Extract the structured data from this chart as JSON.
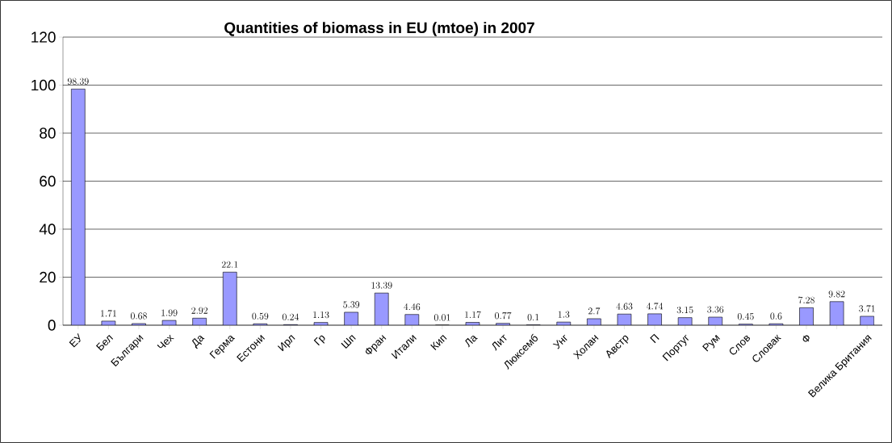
{
  "chart_data": {
    "type": "bar",
    "title": "Quantities of biomass in EU (mtoe) in 2007",
    "categories": [
      "ЕУ",
      "Бел",
      "Българи",
      "Чех",
      "Да",
      "Герма",
      "Естони",
      "Ирл",
      "Гр",
      "Шп",
      "Фран",
      "Итали",
      "Кип",
      "Ла",
      "Лит",
      "Люксемб",
      "Унг",
      "Холан",
      "Австр",
      "П",
      "Португ",
      "Рум",
      "Слов",
      "Словак",
      "Ф",
      null,
      "Велика Британия"
    ],
    "values": [
      98.39,
      1.71,
      0.68,
      1.99,
      2.92,
      22.1,
      0.59,
      0.24,
      1.13,
      5.39,
      13.39,
      4.46,
      0.01,
      1.17,
      0.77,
      0.1,
      1.3,
      2.7,
      4.63,
      4.74,
      3.15,
      3.36,
      0.45,
      0.6,
      7.28,
      9.82,
      3.71
    ],
    "color": "#9999ff",
    "ylim": [
      0,
      120
    ],
    "yticks": [
      0,
      20,
      40,
      60,
      80,
      100,
      120
    ],
    "grid": "y",
    "data_labels": true
  }
}
